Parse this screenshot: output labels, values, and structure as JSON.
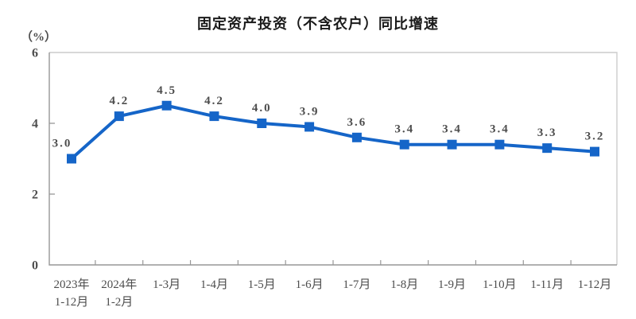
{
  "chart_data": {
    "type": "line",
    "title": "固定资产投资（不含农户）同比增速",
    "ylabel": "（%）",
    "categories": [
      "2023年\n1-12月",
      "2024年\n1-2月",
      "1-3月",
      "1-4月",
      "1-5月",
      "1-6月",
      "1-7月",
      "1-8月",
      "1-9月",
      "1-10月",
      "1-11月",
      "1-12月"
    ],
    "values": [
      3.0,
      4.2,
      4.5,
      4.2,
      4.0,
      3.9,
      3.6,
      3.4,
      3.4,
      3.4,
      3.3,
      3.2
    ],
    "point_labels": [
      "3.0",
      "4.2",
      "4.5",
      "4.2",
      "4.0",
      "3.9",
      "3.6",
      "3.4",
      "3.4",
      "3.4",
      "3.3",
      "3.2"
    ],
    "ylim": [
      0,
      6
    ],
    "yticks": [
      0,
      2,
      4,
      6
    ],
    "grid": false,
    "legend": "none",
    "colors": {
      "line": "#1565c8",
      "marker": "#1565c8",
      "label_text": "#4d4d4d",
      "axis_dark": "#979797",
      "axis_light": "#cccccc",
      "title_text": "#1a1a1a"
    }
  }
}
